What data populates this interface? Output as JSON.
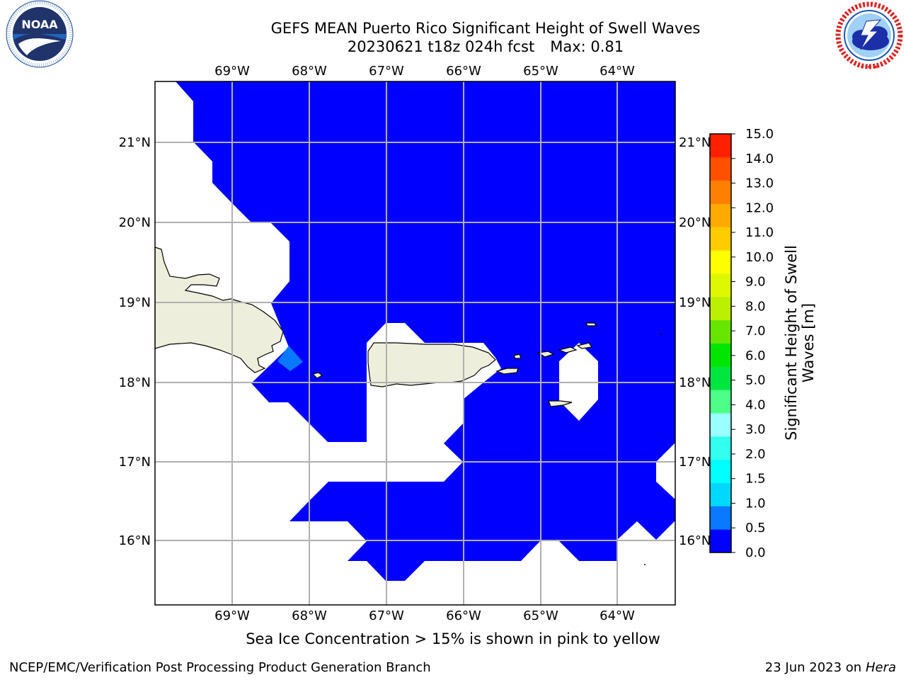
{
  "header": {
    "title_line1": "GEFS MEAN Puerto Rico Significant Height of Swell Waves",
    "title_run": "20230621 t18z 024h fcst",
    "title_max": "Max: 0.81"
  },
  "logos": {
    "noaa": {
      "name": "noaa-logo",
      "text": "NOAA",
      "ring_text": "NATIONAL OCEANIC AND ATMOSPHERIC ADMINISTRATION · U.S. DEPARTMENT OF COMMERCE"
    },
    "nws": {
      "name": "nws-logo",
      "ring_text": "NATIONAL WEATHER SERVICE"
    }
  },
  "map": {
    "lon_labels": [
      "69°W",
      "68°W",
      "67°W",
      "66°W",
      "65°W",
      "64°W"
    ],
    "lat_labels": [
      "21°N",
      "20°N",
      "19°N",
      "18°N",
      "17°N",
      "16°N"
    ],
    "land_color": "#eeeedc",
    "swell_color_main": "#0000ff",
    "swell_color_high": "#0a78ff"
  },
  "colorbar": {
    "label_line1": "Significant Height of Swell",
    "label_line2": "Waves [m]",
    "levels": [
      "0.0",
      "0.5",
      "1.0",
      "1.5",
      "2.0",
      "3.0",
      "4.0",
      "5.0",
      "6.0",
      "7.0",
      "8.0",
      "9.0",
      "10.0",
      "11.0",
      "12.0",
      "13.0",
      "14.0",
      "15.0"
    ],
    "colors": [
      "#0000ff",
      "#0a78ff",
      "#00d9ff",
      "#00ffff",
      "#33ffee",
      "#99ffff",
      "#4dff88",
      "#00e640",
      "#00e600",
      "#66e600",
      "#bbf000",
      "#ddf800",
      "#ffff00",
      "#ffcc00",
      "#ffaa00",
      "#ff8000",
      "#ff5000",
      "#ff2000"
    ]
  },
  "note": "Sea Ice Concentration > 15% is shown in pink to yellow",
  "footer": {
    "left": "NCEP/EMC/Verification Post Processing Product Generation Branch",
    "date": "23 Jun 2023 on",
    "host": "Hera"
  }
}
